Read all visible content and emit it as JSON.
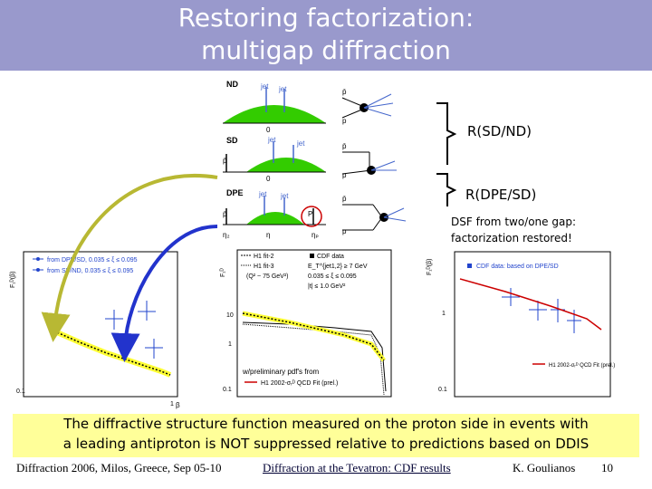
{
  "slide": {
    "title_line1": "Restoring factorization:",
    "title_line2": "multigap diffraction",
    "label_sd_nd": "R(SD/ND)",
    "label_dpe_sd": "R(DPE/SD)",
    "note_line1": "DSF from two/one gap:",
    "note_line2": "factorization restored!",
    "conclusion_line1": "The diffractive structure function measured on the proton side in events with",
    "conclusion_line2": "a leading antiproton is NOT suppressed relative to predictions  based on DDIS",
    "footer_conference": "Diffraction 2006, Milos, Greece, Sep 05-10",
    "footer_talk": "Diffraction at the Tevatron: CDF results",
    "footer_author": "K. Goulianos",
    "footer_page": "10"
  },
  "diagram": {
    "rows": [
      {
        "tag": "ND",
        "jet1": "jet",
        "jet2": "jet"
      },
      {
        "tag": "SD",
        "jet1": "jet",
        "jet2": "jet"
      },
      {
        "tag": "DPE",
        "jet1": "jet",
        "jet2": "jet"
      }
    ],
    "zero": "0",
    "pbar": "p̄",
    "p": "p",
    "p_circle": "P",
    "eta_2": "η₂",
    "eta_axis": "η",
    "eta_p": "ηₚ"
  },
  "plots": {
    "left": {
      "y_label": "F₁ᴰ(β)",
      "legend1": "from DPE/SD, 0.035 ≤ ξ ≤ 0.095",
      "legend2": "from SD/ND, 0.035 ≤ ξ ≤ 0.095",
      "x_label": "β"
    },
    "middle": {
      "y_label": "F₁ᴰ",
      "legend_cdf": "CDF data",
      "legend_fit2": "H1 fit-2",
      "legend_fit3": "H1 fit-3",
      "q2": "(Q² ~ 75 GeV²)",
      "et": "E_T^{jet1,2} ≥ 7 GeV",
      "xi_range": "0.035 ≤ ξ ≤ 0.095",
      "t_range": "|t| ≤ 1.0 GeV²",
      "prelim": "w/preliminary pdf's from",
      "h1_2002": "H1 2002-σᵣᴰ QCD Fit (prel.)"
    },
    "right": {
      "y_label": "F₁ᴰ(β)",
      "legend": "CDF data: based on DPE/SD",
      "h1_fit": "H1 2002-σᵣᴰ QCD Fit (prel.)"
    },
    "ticks": {
      "t10": "10",
      "t1": "1",
      "t01": "0.1",
      "t001": "0.01"
    }
  },
  "colors": {
    "title_bg": "#9999cc",
    "conclusion_bg": "#ffff99",
    "arrow_olive": "#b8b833",
    "arrow_blue": "#2233cc",
    "hump_green": "#33cc00"
  }
}
